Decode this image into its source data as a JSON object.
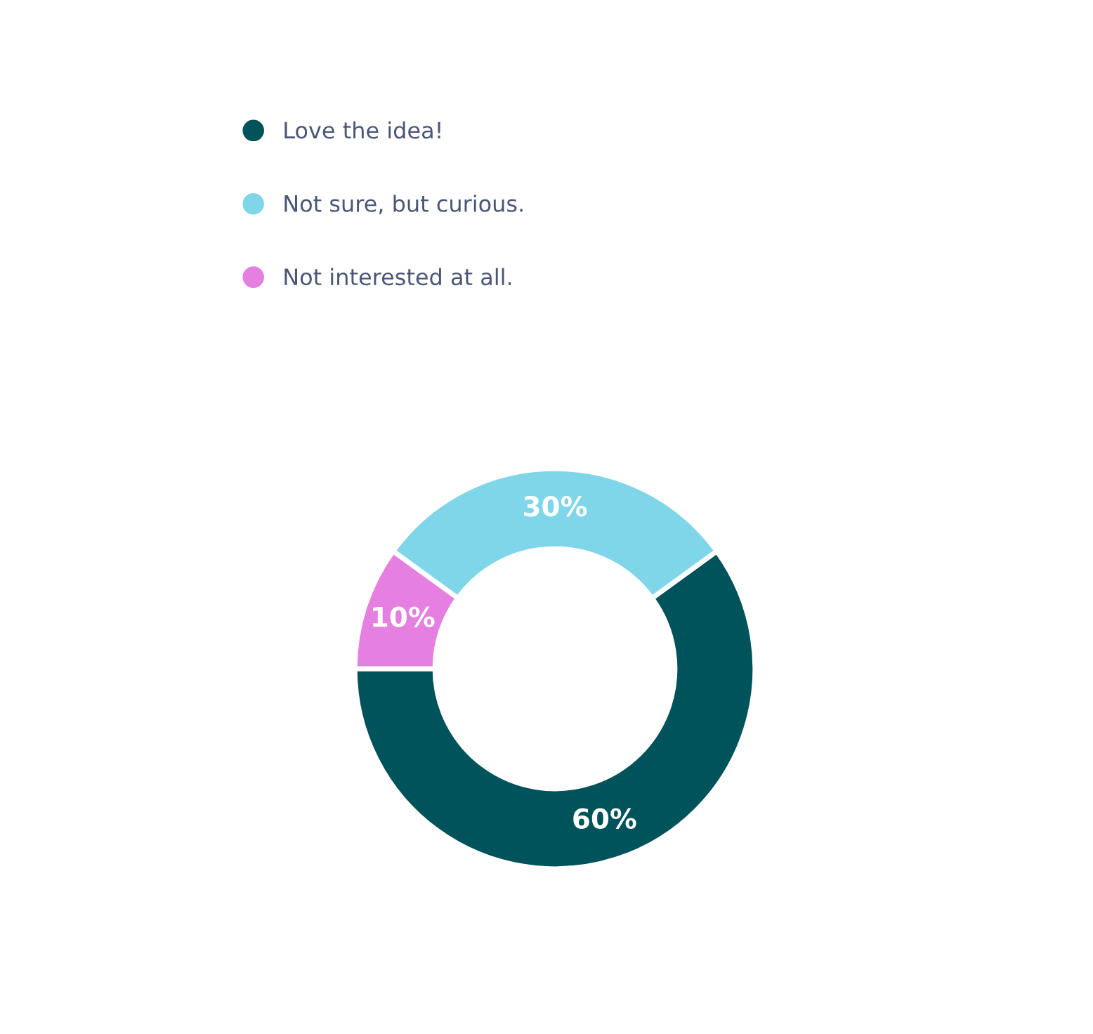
{
  "chart_data": {
    "type": "donut",
    "categories": [
      "Love the idea!",
      "Not sure, but curious.",
      "Not interested at all."
    ],
    "values": [
      60,
      30,
      10
    ],
    "colors": [
      "#00535a",
      "#7fd6e8",
      "#e57fe0"
    ],
    "value_labels": [
      "60%",
      "30%",
      "10%"
    ],
    "legend": "top left"
  }
}
